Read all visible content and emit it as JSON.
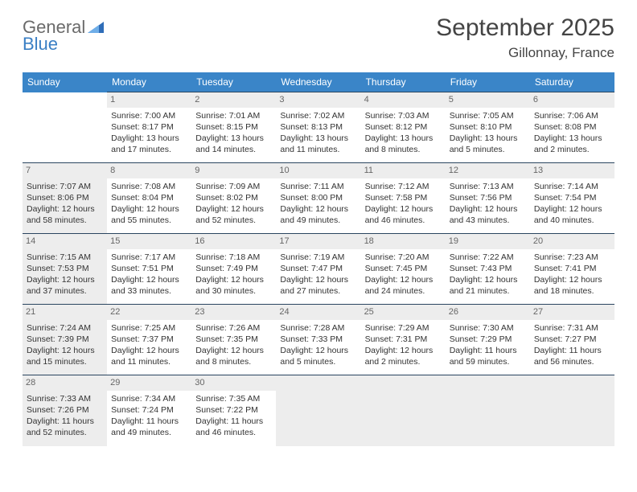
{
  "logo": {
    "line1": "General",
    "line2": "Blue"
  },
  "title": "September 2025",
  "location": "Gillonnay, France",
  "colors": {
    "header_bg": "#3a85c8",
    "header_text": "#ffffff",
    "border": "#2a4560",
    "shaded": "#ededed",
    "text": "#333333",
    "logo_gray": "#6a6a6a",
    "logo_blue": "#3a7fc4"
  },
  "day_headers": [
    "Sunday",
    "Monday",
    "Tuesday",
    "Wednesday",
    "Thursday",
    "Friday",
    "Saturday"
  ],
  "weeks": [
    [
      {
        "empty": "start"
      },
      {
        "num": "1",
        "sunrise": "7:00 AM",
        "sunset": "8:17 PM",
        "daylight": "13 hours and 17 minutes."
      },
      {
        "num": "2",
        "sunrise": "7:01 AM",
        "sunset": "8:15 PM",
        "daylight": "13 hours and 14 minutes."
      },
      {
        "num": "3",
        "sunrise": "7:02 AM",
        "sunset": "8:13 PM",
        "daylight": "13 hours and 11 minutes."
      },
      {
        "num": "4",
        "sunrise": "7:03 AM",
        "sunset": "8:12 PM",
        "daylight": "13 hours and 8 minutes."
      },
      {
        "num": "5",
        "sunrise": "7:05 AM",
        "sunset": "8:10 PM",
        "daylight": "13 hours and 5 minutes."
      },
      {
        "num": "6",
        "sunrise": "7:06 AM",
        "sunset": "8:08 PM",
        "daylight": "13 hours and 2 minutes."
      }
    ],
    [
      {
        "num": "7",
        "sunrise": "7:07 AM",
        "sunset": "8:06 PM",
        "daylight": "12 hours and 58 minutes.",
        "shaded": true
      },
      {
        "num": "8",
        "sunrise": "7:08 AM",
        "sunset": "8:04 PM",
        "daylight": "12 hours and 55 minutes."
      },
      {
        "num": "9",
        "sunrise": "7:09 AM",
        "sunset": "8:02 PM",
        "daylight": "12 hours and 52 minutes."
      },
      {
        "num": "10",
        "sunrise": "7:11 AM",
        "sunset": "8:00 PM",
        "daylight": "12 hours and 49 minutes."
      },
      {
        "num": "11",
        "sunrise": "7:12 AM",
        "sunset": "7:58 PM",
        "daylight": "12 hours and 46 minutes."
      },
      {
        "num": "12",
        "sunrise": "7:13 AM",
        "sunset": "7:56 PM",
        "daylight": "12 hours and 43 minutes."
      },
      {
        "num": "13",
        "sunrise": "7:14 AM",
        "sunset": "7:54 PM",
        "daylight": "12 hours and 40 minutes."
      }
    ],
    [
      {
        "num": "14",
        "sunrise": "7:15 AM",
        "sunset": "7:53 PM",
        "daylight": "12 hours and 37 minutes.",
        "shaded": true
      },
      {
        "num": "15",
        "sunrise": "7:17 AM",
        "sunset": "7:51 PM",
        "daylight": "12 hours and 33 minutes."
      },
      {
        "num": "16",
        "sunrise": "7:18 AM",
        "sunset": "7:49 PM",
        "daylight": "12 hours and 30 minutes."
      },
      {
        "num": "17",
        "sunrise": "7:19 AM",
        "sunset": "7:47 PM",
        "daylight": "12 hours and 27 minutes."
      },
      {
        "num": "18",
        "sunrise": "7:20 AM",
        "sunset": "7:45 PM",
        "daylight": "12 hours and 24 minutes."
      },
      {
        "num": "19",
        "sunrise": "7:22 AM",
        "sunset": "7:43 PM",
        "daylight": "12 hours and 21 minutes."
      },
      {
        "num": "20",
        "sunrise": "7:23 AM",
        "sunset": "7:41 PM",
        "daylight": "12 hours and 18 minutes."
      }
    ],
    [
      {
        "num": "21",
        "sunrise": "7:24 AM",
        "sunset": "7:39 PM",
        "daylight": "12 hours and 15 minutes.",
        "shaded": true
      },
      {
        "num": "22",
        "sunrise": "7:25 AM",
        "sunset": "7:37 PM",
        "daylight": "12 hours and 11 minutes."
      },
      {
        "num": "23",
        "sunrise": "7:26 AM",
        "sunset": "7:35 PM",
        "daylight": "12 hours and 8 minutes."
      },
      {
        "num": "24",
        "sunrise": "7:28 AM",
        "sunset": "7:33 PM",
        "daylight": "12 hours and 5 minutes."
      },
      {
        "num": "25",
        "sunrise": "7:29 AM",
        "sunset": "7:31 PM",
        "daylight": "12 hours and 2 minutes."
      },
      {
        "num": "26",
        "sunrise": "7:30 AM",
        "sunset": "7:29 PM",
        "daylight": "11 hours and 59 minutes."
      },
      {
        "num": "27",
        "sunrise": "7:31 AM",
        "sunset": "7:27 PM",
        "daylight": "11 hours and 56 minutes."
      }
    ],
    [
      {
        "num": "28",
        "sunrise": "7:33 AM",
        "sunset": "7:26 PM",
        "daylight": "11 hours and 52 minutes.",
        "shaded": true
      },
      {
        "num": "29",
        "sunrise": "7:34 AM",
        "sunset": "7:24 PM",
        "daylight": "11 hours and 49 minutes."
      },
      {
        "num": "30",
        "sunrise": "7:35 AM",
        "sunset": "7:22 PM",
        "daylight": "11 hours and 46 minutes."
      },
      {
        "empty": "end"
      },
      {
        "empty": "end"
      },
      {
        "empty": "end"
      },
      {
        "empty": "end"
      }
    ]
  ],
  "labels": {
    "sunrise": "Sunrise: ",
    "sunset": "Sunset: ",
    "daylight": "Daylight: "
  }
}
